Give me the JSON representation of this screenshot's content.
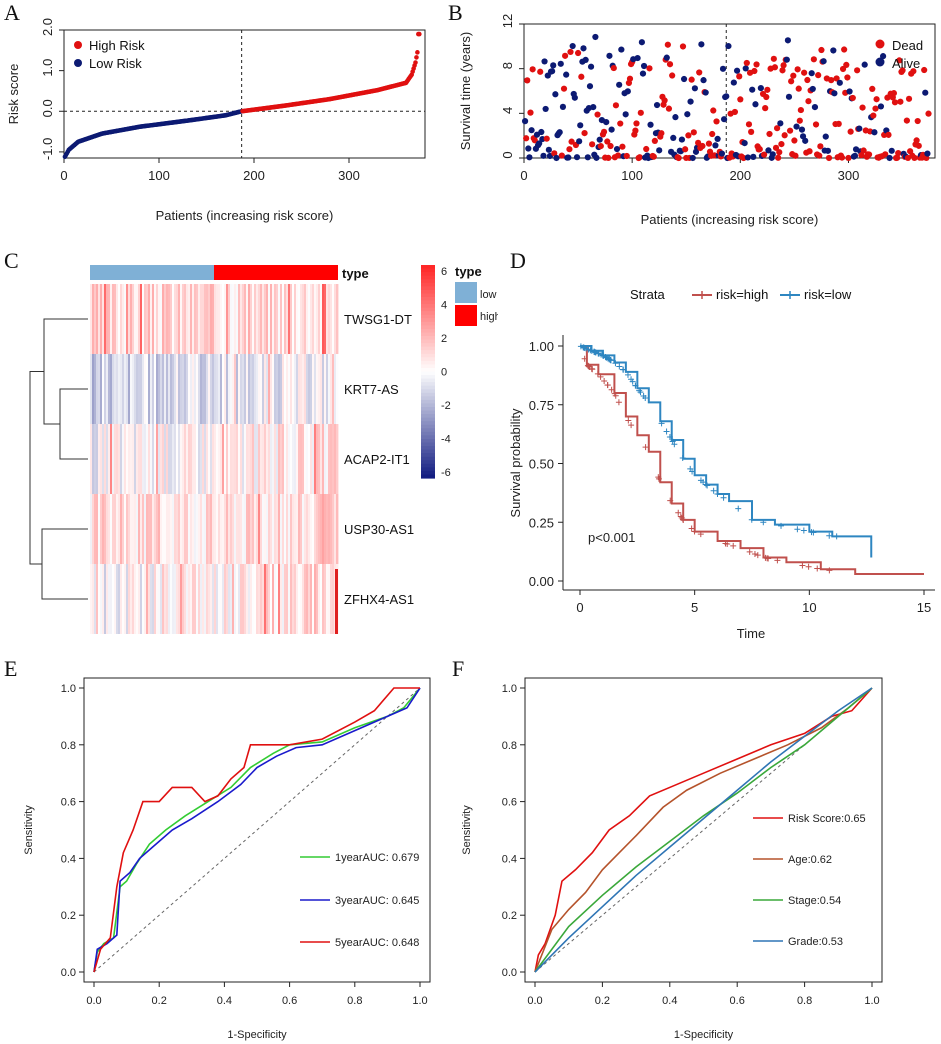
{
  "panels": {
    "A": "A",
    "B": "B",
    "C": "C",
    "D": "D",
    "E": "E",
    "F": "F"
  },
  "colors": {
    "high": "#e01010",
    "low": "#0c1a73",
    "km_high": "#c0504d",
    "km_low": "#2e86c1",
    "green": "#33cc33",
    "blue": "#1a1acc",
    "red": "#e01010",
    "brown": "#b5532b",
    "stage_green": "#3aa83a",
    "grade_blue": "#2f75b5",
    "heat_low_bar": "#7fb0d6",
    "heat_high_bar": "#ff0000"
  },
  "chart_data": [
    {
      "id": "A",
      "type": "scatter",
      "title": "",
      "xlabel": "Patients (increasing risk score)",
      "ylabel": "Risk score",
      "xlim": [
        0,
        380
      ],
      "ylim": [
        -1.15,
        2.0
      ],
      "xticks": [
        "0",
        "100",
        "200",
        "300"
      ],
      "yticks": [
        "-1.0",
        "0.0",
        "1.0",
        "2.0"
      ],
      "cutoff_patient": 187,
      "n_patients": 374,
      "series": [
        {
          "name": "High Risk",
          "curve_points": [
            [
              187,
              0.0
            ],
            [
              230,
              0.13
            ],
            [
              280,
              0.3
            ],
            [
              330,
              0.52
            ],
            [
              360,
              0.7
            ],
            [
              366,
              0.9
            ],
            [
              370,
              1.2
            ],
            [
              372,
              1.45
            ],
            [
              373,
              1.9
            ]
          ]
        },
        {
          "name": "Low Risk",
          "curve_points": [
            [
              1,
              -1.12
            ],
            [
              5,
              -0.95
            ],
            [
              15,
              -0.75
            ],
            [
              40,
              -0.55
            ],
            [
              80,
              -0.38
            ],
            [
              130,
              -0.23
            ],
            [
              170,
              -0.1
            ],
            [
              187,
              0.0
            ]
          ]
        }
      ],
      "legend": [
        "High Risk",
        "Low Risk"
      ]
    },
    {
      "id": "B",
      "type": "scatter",
      "xlabel": "Patients (increasing risk score)",
      "ylabel": "Survival time (years)",
      "xlim": [
        0,
        380
      ],
      "ylim": [
        0,
        12
      ],
      "xticks": [
        "0",
        "100",
        "200",
        "300"
      ],
      "yticks": [
        "0",
        "4",
        "8",
        "12"
      ],
      "cutoff_patient": 187,
      "legend": [
        "Dead",
        "Alive"
      ],
      "note": "Individual patients; approx. 374 points scattered 0-11 years, red=Dead, navy=Alive"
    },
    {
      "id": "C",
      "type": "heatmap",
      "genes": [
        "TWSG1-DT",
        "KRT7-AS",
        "ACAP2-IT1",
        "USP30-AS1",
        "ZFHX4-AS1"
      ],
      "type_label": "type",
      "type_legend": [
        "low",
        "high"
      ],
      "colorbar_ticks": [
        "6",
        "4",
        "2",
        "0",
        "-2",
        "-4",
        "-6"
      ],
      "colorbar_range": [
        -6,
        6
      ],
      "row_bias": [
        0.55,
        -0.35,
        0.15,
        0.45,
        0.05
      ],
      "low_fraction": 0.5
    },
    {
      "id": "D",
      "type": "line",
      "legend_title": "Strata",
      "xlabel": "Time",
      "ylabel": "Survival probability",
      "xlim": [
        0,
        15
      ],
      "ylim": [
        0,
        1
      ],
      "xticks": [
        "0",
        "5",
        "10",
        "15"
      ],
      "yticks": [
        "0.00",
        "0.25",
        "0.50",
        "0.75",
        "1.00"
      ],
      "pvalue": "p<0.001",
      "series": [
        {
          "name": "risk=high",
          "points": [
            [
              0,
              1.0
            ],
            [
              0.3,
              0.92
            ],
            [
              0.8,
              0.88
            ],
            [
              1.5,
              0.8
            ],
            [
              2.0,
              0.7
            ],
            [
              2.5,
              0.62
            ],
            [
              3.0,
              0.55
            ],
            [
              3.5,
              0.42
            ],
            [
              4.0,
              0.33
            ],
            [
              4.5,
              0.26
            ],
            [
              5.0,
              0.21
            ],
            [
              6.0,
              0.17
            ],
            [
              7.0,
              0.14
            ],
            [
              8.0,
              0.1
            ],
            [
              9.0,
              0.08
            ],
            [
              10.5,
              0.05
            ],
            [
              12.0,
              0.03
            ],
            [
              15.0,
              0.03
            ]
          ]
        },
        {
          "name": "risk=low",
          "points": [
            [
              0,
              1.0
            ],
            [
              0.5,
              0.98
            ],
            [
              1.0,
              0.96
            ],
            [
              1.5,
              0.93
            ],
            [
              2.0,
              0.89
            ],
            [
              2.5,
              0.82
            ],
            [
              3.0,
              0.76
            ],
            [
              3.5,
              0.68
            ],
            [
              4.0,
              0.6
            ],
            [
              4.5,
              0.52
            ],
            [
              5.0,
              0.45
            ],
            [
              5.5,
              0.41
            ],
            [
              6.0,
              0.37
            ],
            [
              6.5,
              0.34
            ],
            [
              7.5,
              0.26
            ],
            [
              8.5,
              0.24
            ],
            [
              10.0,
              0.21
            ],
            [
              11.0,
              0.19
            ],
            [
              12.6,
              0.19
            ],
            [
              12.7,
              0.1
            ]
          ]
        }
      ]
    },
    {
      "id": "E",
      "type": "line",
      "xlabel": "1-Specificity",
      "ylabel": "Sensitivity",
      "xlim": [
        0,
        1
      ],
      "ylim": [
        0,
        1
      ],
      "xticks": [
        "0.0",
        "0.2",
        "0.4",
        "0.6",
        "0.8",
        "1.0"
      ],
      "yticks": [
        "0.0",
        "0.2",
        "0.4",
        "0.6",
        "0.8",
        "1.0"
      ],
      "series": [
        {
          "name": "1yearAUC: 0.679",
          "points": [
            [
              0,
              0
            ],
            [
              0.01,
              0.07
            ],
            [
              0.03,
              0.1
            ],
            [
              0.06,
              0.12
            ],
            [
              0.08,
              0.3
            ],
            [
              0.1,
              0.32
            ],
            [
              0.13,
              0.38
            ],
            [
              0.17,
              0.45
            ],
            [
              0.22,
              0.5
            ],
            [
              0.28,
              0.55
            ],
            [
              0.35,
              0.6
            ],
            [
              0.42,
              0.65
            ],
            [
              0.48,
              0.72
            ],
            [
              0.55,
              0.77
            ],
            [
              0.6,
              0.8
            ],
            [
              0.7,
              0.81
            ],
            [
              0.8,
              0.86
            ],
            [
              0.9,
              0.9
            ],
            [
              0.95,
              0.93
            ],
            [
              1.0,
              1.0
            ]
          ]
        },
        {
          "name": "3yearAUC: 0.645",
          "points": [
            [
              0,
              0
            ],
            [
              0.01,
              0.08
            ],
            [
              0.04,
              0.1
            ],
            [
              0.07,
              0.13
            ],
            [
              0.08,
              0.32
            ],
            [
              0.11,
              0.35
            ],
            [
              0.14,
              0.4
            ],
            [
              0.18,
              0.44
            ],
            [
              0.24,
              0.5
            ],
            [
              0.3,
              0.54
            ],
            [
              0.38,
              0.6
            ],
            [
              0.45,
              0.66
            ],
            [
              0.5,
              0.72
            ],
            [
              0.56,
              0.76
            ],
            [
              0.62,
              0.79
            ],
            [
              0.7,
              0.8
            ],
            [
              0.8,
              0.85
            ],
            [
              0.9,
              0.9
            ],
            [
              0.96,
              0.93
            ],
            [
              1.0,
              1.0
            ]
          ]
        },
        {
          "name": "5yearAUC: 0.648",
          "points": [
            [
              0,
              0
            ],
            [
              0.02,
              0.08
            ],
            [
              0.05,
              0.12
            ],
            [
              0.07,
              0.3
            ],
            [
              0.09,
              0.42
            ],
            [
              0.12,
              0.5
            ],
            [
              0.15,
              0.6
            ],
            [
              0.2,
              0.6
            ],
            [
              0.24,
              0.65
            ],
            [
              0.3,
              0.65
            ],
            [
              0.34,
              0.6
            ],
            [
              0.38,
              0.62
            ],
            [
              0.42,
              0.68
            ],
            [
              0.46,
              0.72
            ],
            [
              0.48,
              0.8
            ],
            [
              0.55,
              0.8
            ],
            [
              0.6,
              0.8
            ],
            [
              0.7,
              0.82
            ],
            [
              0.8,
              0.88
            ],
            [
              0.86,
              0.92
            ],
            [
              0.92,
              1.0
            ],
            [
              1.0,
              1.0
            ]
          ]
        }
      ]
    },
    {
      "id": "F",
      "type": "line",
      "xlabel": "1-Specificity",
      "ylabel": "Sensitivity",
      "xlim": [
        0,
        1
      ],
      "ylim": [
        0,
        1
      ],
      "xticks": [
        "0.0",
        "0.2",
        "0.4",
        "0.6",
        "0.8",
        "1.0"
      ],
      "yticks": [
        "0.0",
        "0.2",
        "0.4",
        "0.6",
        "0.8",
        "1.0"
      ],
      "series": [
        {
          "name": "Risk Score:0.65",
          "points": [
            [
              0,
              0
            ],
            [
              0.01,
              0.06
            ],
            [
              0.03,
              0.1
            ],
            [
              0.06,
              0.2
            ],
            [
              0.08,
              0.32
            ],
            [
              0.12,
              0.36
            ],
            [
              0.17,
              0.42
            ],
            [
              0.22,
              0.5
            ],
            [
              0.28,
              0.55
            ],
            [
              0.34,
              0.62
            ],
            [
              0.42,
              0.66
            ],
            [
              0.5,
              0.7
            ],
            [
              0.6,
              0.75
            ],
            [
              0.7,
              0.8
            ],
            [
              0.8,
              0.84
            ],
            [
              0.88,
              0.9
            ],
            [
              0.94,
              0.92
            ],
            [
              0.97,
              0.96
            ],
            [
              1.0,
              1.0
            ]
          ]
        },
        {
          "name": "Age:0.62",
          "points": [
            [
              0,
              0
            ],
            [
              0.05,
              0.15
            ],
            [
              0.1,
              0.22
            ],
            [
              0.15,
              0.28
            ],
            [
              0.2,
              0.36
            ],
            [
              0.25,
              0.42
            ],
            [
              0.3,
              0.48
            ],
            [
              0.38,
              0.58
            ],
            [
              0.45,
              0.64
            ],
            [
              0.55,
              0.7
            ],
            [
              0.65,
              0.75
            ],
            [
              0.75,
              0.8
            ],
            [
              0.85,
              0.86
            ],
            [
              0.93,
              0.93
            ],
            [
              1.0,
              1.0
            ]
          ]
        },
        {
          "name": "Stage:0.54",
          "points": [
            [
              0,
              0
            ],
            [
              0.1,
              0.16
            ],
            [
              0.2,
              0.27
            ],
            [
              0.3,
              0.37
            ],
            [
              0.4,
              0.46
            ],
            [
              0.5,
              0.55
            ],
            [
              0.6,
              0.63
            ],
            [
              0.7,
              0.72
            ],
            [
              0.8,
              0.8
            ],
            [
              0.9,
              0.9
            ],
            [
              1.0,
              1.0
            ]
          ]
        },
        {
          "name": "Grade:0.53",
          "points": [
            [
              0,
              0
            ],
            [
              0.1,
              0.12
            ],
            [
              0.2,
              0.23
            ],
            [
              0.3,
              0.34
            ],
            [
              0.4,
              0.44
            ],
            [
              0.5,
              0.54
            ],
            [
              0.6,
              0.64
            ],
            [
              0.7,
              0.74
            ],
            [
              0.8,
              0.83
            ],
            [
              0.9,
              0.92
            ],
            [
              1.0,
              1.0
            ]
          ]
        }
      ]
    }
  ]
}
